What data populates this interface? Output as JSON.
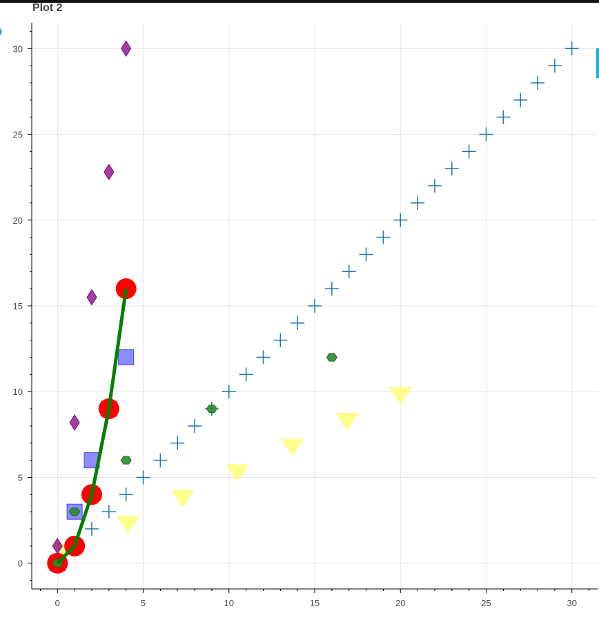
{
  "chart_data": {
    "type": "scatter",
    "title": "Plot 2",
    "xlim": [
      -1.5,
      31.5
    ],
    "ylim": [
      -1.5,
      31.5
    ],
    "x_ticks": [
      0,
      5,
      10,
      15,
      20,
      25,
      30
    ],
    "y_ticks": [
      0,
      5,
      10,
      15,
      20,
      25,
      30
    ],
    "grid": true,
    "series": [
      {
        "marker": "cross",
        "color": "#1f77b4",
        "x": [
          0,
          1,
          2,
          3,
          4,
          5,
          6,
          7,
          8,
          9,
          10,
          11,
          12,
          13,
          14,
          15,
          16,
          17,
          18,
          19,
          20,
          21,
          22,
          23,
          24,
          25,
          26,
          27,
          28,
          29,
          30
        ],
        "y": [
          0,
          1,
          2,
          3,
          4,
          5,
          6,
          7,
          8,
          9,
          10,
          11,
          12,
          13,
          14,
          15,
          16,
          17,
          18,
          19,
          20,
          21,
          22,
          23,
          24,
          25,
          26,
          27,
          28,
          29,
          30
        ]
      },
      {
        "marker": "inverted_triangle",
        "color": "#ffff66",
        "x": [
          0.4,
          4.1,
          7.3,
          10.5,
          13.7,
          16.9,
          20.0
        ],
        "y": [
          0.7,
          2.3,
          3.8,
          5.3,
          6.8,
          8.3,
          9.8
        ]
      },
      {
        "marker": "hex",
        "color": "#2e8b2e",
        "x": [
          0,
          1,
          4,
          9,
          16
        ],
        "y": [
          0,
          3,
          6,
          9,
          12
        ]
      },
      {
        "marker": "diamond",
        "color": "#800080",
        "x": [
          0,
          1,
          2,
          3,
          4
        ],
        "y": [
          1,
          8.2,
          15.5,
          22.8,
          30
        ]
      },
      {
        "marker": "square",
        "color": "#6666ff",
        "x": [
          0,
          1,
          2,
          3,
          4
        ],
        "y": [
          0,
          3,
          6,
          9,
          12
        ]
      },
      {
        "marker": "circle",
        "color": "#ff0000",
        "x": [
          0,
          1,
          2,
          3,
          4
        ],
        "y": [
          0,
          1,
          4,
          9,
          16
        ]
      },
      {
        "marker": "line",
        "color": "#008000",
        "x": [
          0,
          1,
          2,
          3,
          4
        ],
        "y": [
          0,
          1,
          4,
          9,
          16
        ]
      }
    ]
  }
}
